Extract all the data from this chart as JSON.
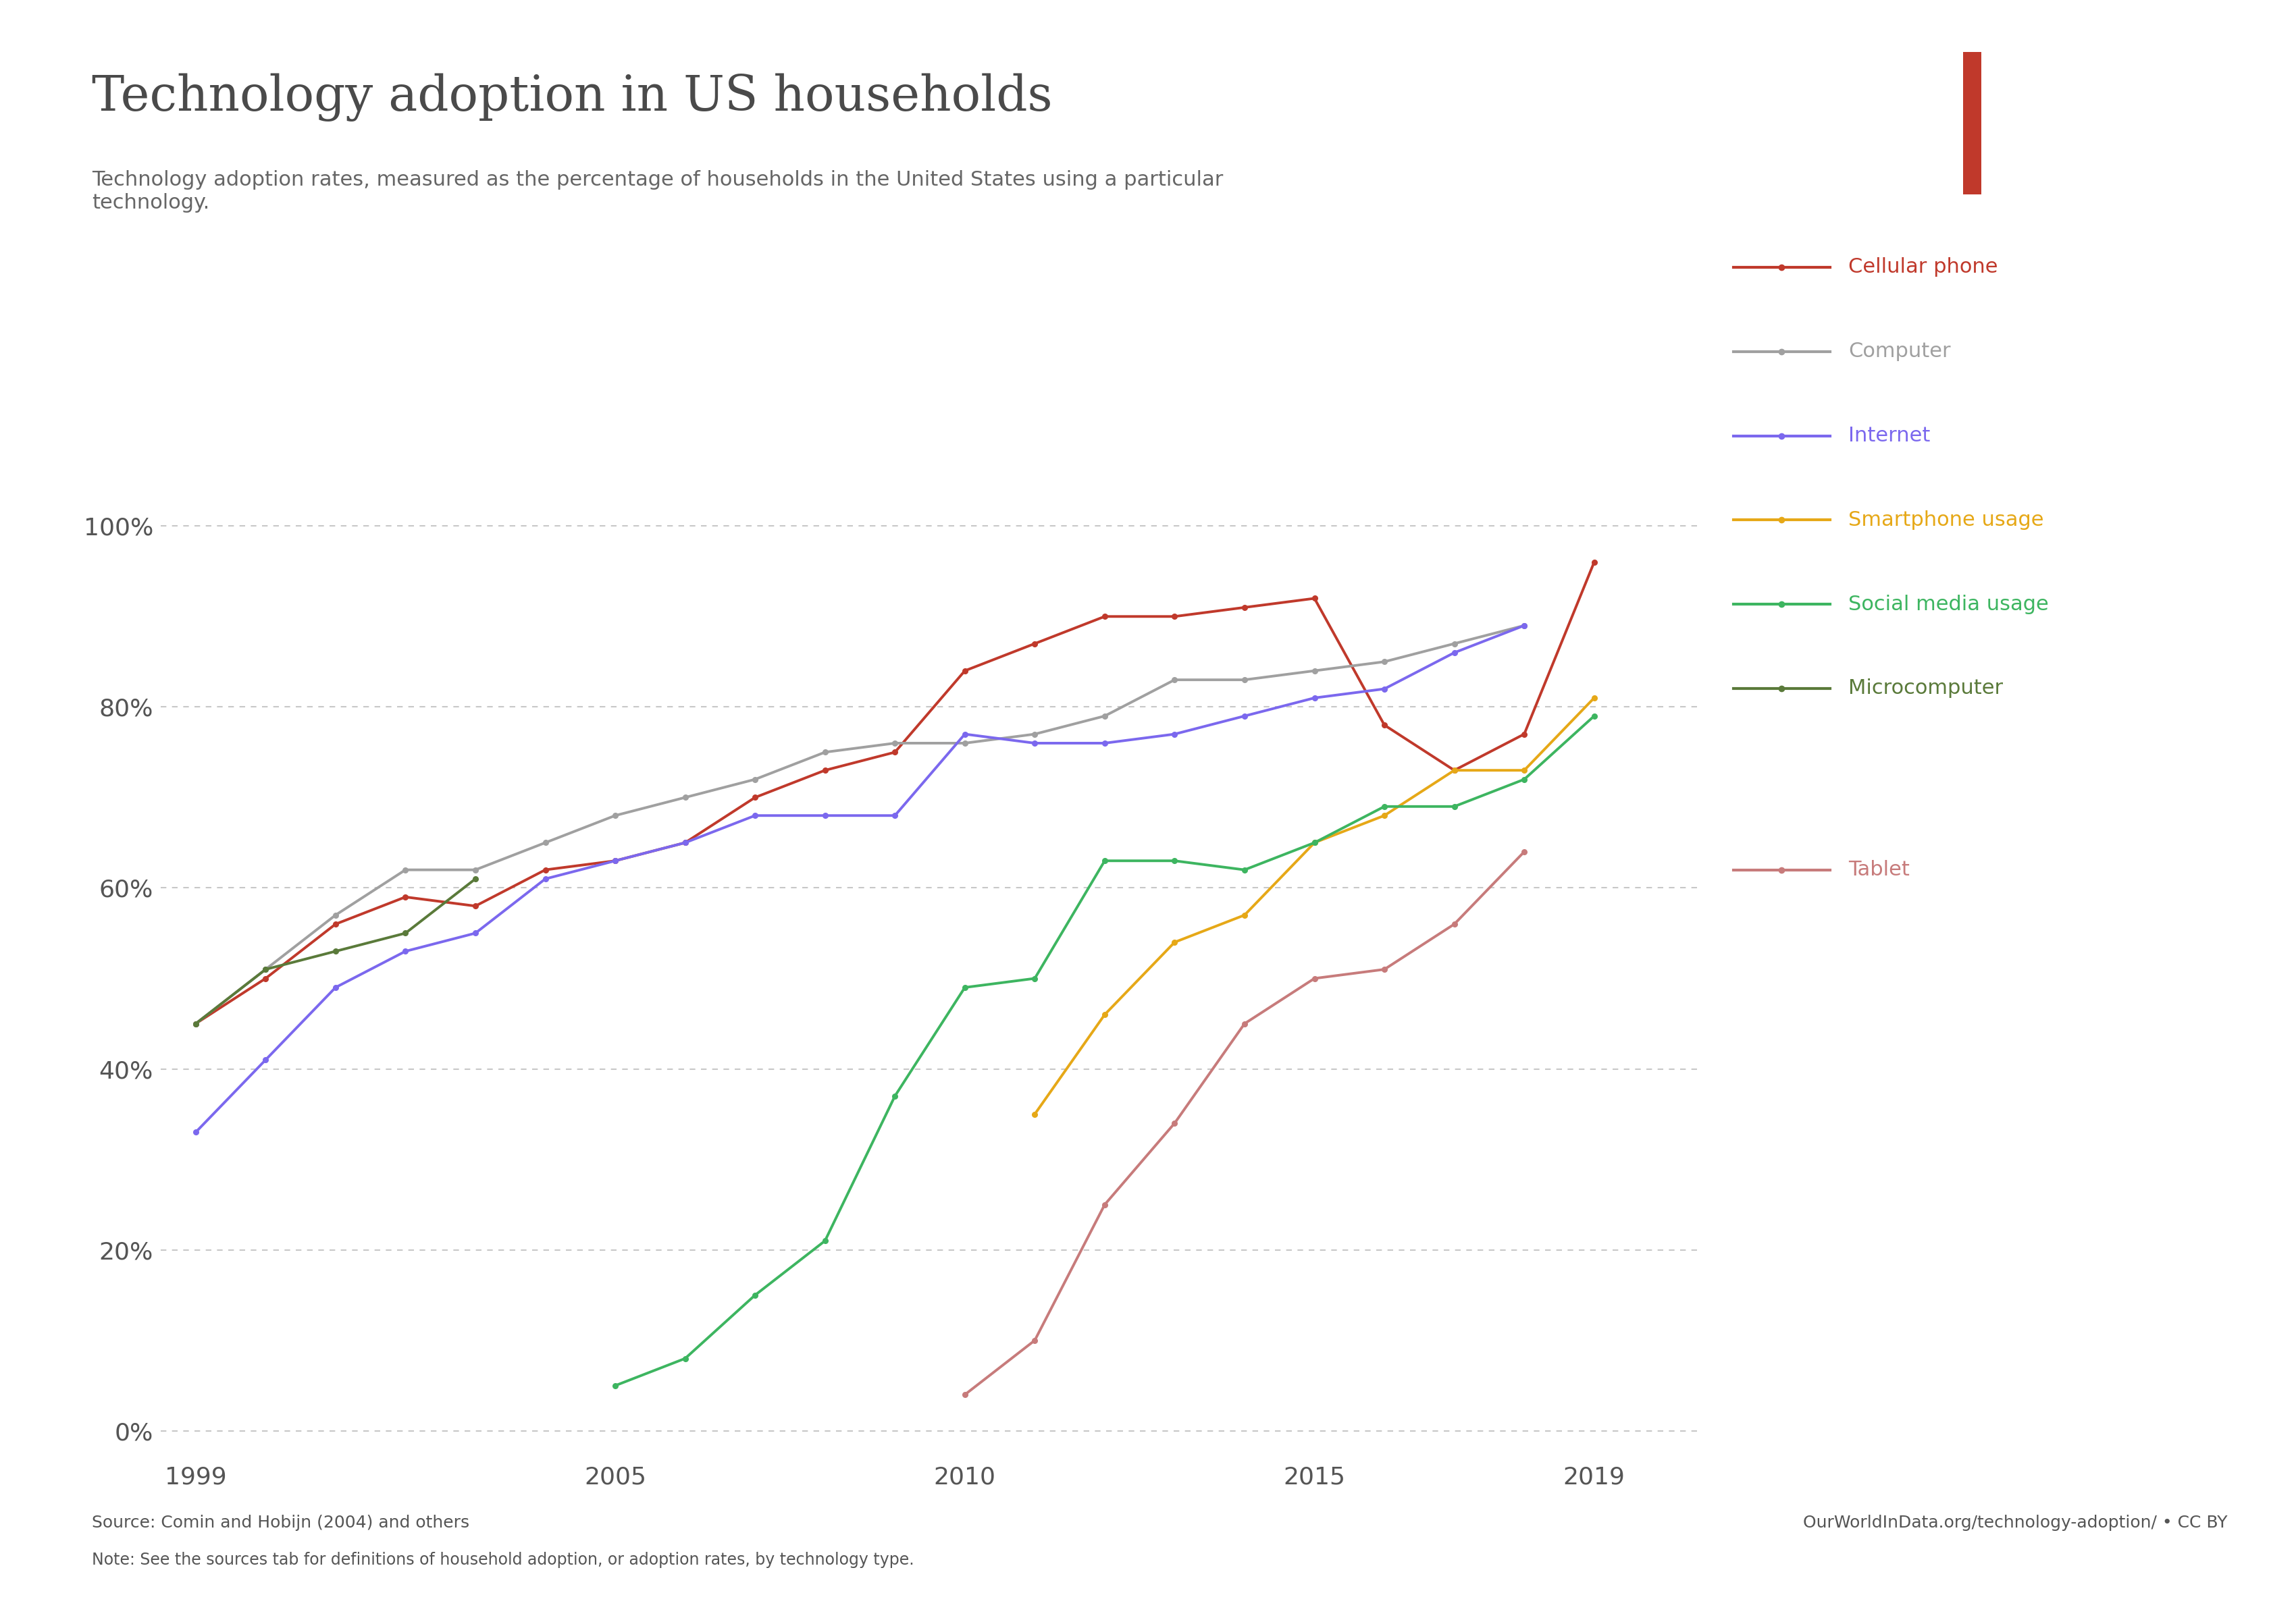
{
  "title": "Technology adoption in US households",
  "subtitle": "Technology adoption rates, measured as the percentage of households in the United States using a particular\ntechnology.",
  "source_left": "Source: Comin and Hobijn (2004) and others",
  "source_right": "OurWorldInData.org/technology-adoption/ • CC BY",
  "note": "Note: See the sources tab for definitions of household adoption, or adoption rates, by technology type.",
  "background_color": "#ffffff",
  "grid_color": "#c8c8c8",
  "title_color": "#4a4a4a",
  "series": [
    {
      "name": "Cellular phone",
      "color": "#c0392b",
      "linestyle": "solid",
      "data": [
        [
          1999,
          45
        ],
        [
          2000,
          50
        ],
        [
          2001,
          56
        ],
        [
          2002,
          59
        ],
        [
          2003,
          58
        ],
        [
          2004,
          62
        ],
        [
          2005,
          63
        ],
        [
          2006,
          65
        ],
        [
          2007,
          70
        ],
        [
          2008,
          73
        ],
        [
          2009,
          75
        ],
        [
          2010,
          84
        ],
        [
          2011,
          87
        ],
        [
          2012,
          90
        ],
        [
          2013,
          90
        ],
        [
          2014,
          91
        ],
        [
          2015,
          92
        ],
        [
          2016,
          78
        ],
        [
          2017,
          73
        ],
        [
          2018,
          77
        ],
        [
          2019,
          96
        ]
      ]
    },
    {
      "name": "Computer",
      "color": "#a0a0a0",
      "linestyle": "solid",
      "data": [
        [
          1999,
          45
        ],
        [
          2000,
          51
        ],
        [
          2001,
          57
        ],
        [
          2002,
          62
        ],
        [
          2003,
          62
        ],
        [
          2004,
          65
        ],
        [
          2005,
          68
        ],
        [
          2006,
          70
        ],
        [
          2007,
          72
        ],
        [
          2008,
          75
        ],
        [
          2009,
          76
        ],
        [
          2010,
          76
        ],
        [
          2011,
          77
        ],
        [
          2012,
          79
        ],
        [
          2013,
          83
        ],
        [
          2014,
          83
        ],
        [
          2015,
          84
        ],
        [
          2016,
          85
        ],
        [
          2017,
          87
        ],
        [
          2018,
          89
        ]
      ]
    },
    {
      "name": "Internet",
      "color": "#7b68ee",
      "linestyle": "solid",
      "data": [
        [
          1999,
          33
        ],
        [
          2000,
          41
        ],
        [
          2001,
          49
        ],
        [
          2002,
          53
        ],
        [
          2003,
          55
        ],
        [
          2004,
          61
        ],
        [
          2005,
          63
        ],
        [
          2006,
          65
        ],
        [
          2007,
          68
        ],
        [
          2008,
          68
        ],
        [
          2009,
          68
        ],
        [
          2010,
          77
        ],
        [
          2011,
          76
        ],
        [
          2012,
          76
        ],
        [
          2013,
          77
        ],
        [
          2014,
          79
        ],
        [
          2015,
          81
        ],
        [
          2016,
          82
        ],
        [
          2017,
          86
        ],
        [
          2018,
          89
        ]
      ]
    },
    {
      "name": "Smartphone usage",
      "color": "#e6a817",
      "linestyle": "solid",
      "data": [
        [
          2011,
          35
        ],
        [
          2012,
          46
        ],
        [
          2013,
          54
        ],
        [
          2014,
          57
        ],
        [
          2015,
          65
        ],
        [
          2016,
          68
        ],
        [
          2017,
          73
        ],
        [
          2018,
          73
        ],
        [
          2019,
          81
        ]
      ]
    },
    {
      "name": "Social media usage",
      "color": "#3db560",
      "linestyle": "solid",
      "data": [
        [
          2005,
          5
        ],
        [
          2006,
          8
        ],
        [
          2007,
          15
        ],
        [
          2008,
          21
        ],
        [
          2009,
          37
        ],
        [
          2010,
          49
        ],
        [
          2011,
          50
        ],
        [
          2012,
          63
        ],
        [
          2013,
          63
        ],
        [
          2014,
          62
        ],
        [
          2015,
          65
        ],
        [
          2016,
          69
        ],
        [
          2017,
          69
        ],
        [
          2018,
          72
        ],
        [
          2019,
          79
        ]
      ]
    },
    {
      "name": "Microcomputer",
      "color": "#5a7a3a",
      "linestyle": "solid",
      "data": [
        [
          1999,
          45
        ],
        [
          2000,
          51
        ],
        [
          2001,
          53
        ],
        [
          2002,
          55
        ],
        [
          2003,
          61
        ]
      ]
    },
    {
      "name": "Tablet",
      "color": "#c77b7b",
      "linestyle": "solid",
      "data": [
        [
          2010,
          4
        ],
        [
          2011,
          10
        ],
        [
          2012,
          25
        ],
        [
          2013,
          34
        ],
        [
          2014,
          45
        ],
        [
          2015,
          50
        ],
        [
          2016,
          51
        ],
        [
          2017,
          56
        ],
        [
          2018,
          64
        ]
      ]
    }
  ],
  "xlim": [
    1998.5,
    2020.5
  ],
  "ylim": [
    -3,
    108
  ],
  "yticks": [
    0,
    20,
    40,
    60,
    80,
    100
  ],
  "xticks": [
    1999,
    2005,
    2010,
    2015,
    2019
  ],
  "legend": [
    {
      "name": "Cellular phone",
      "color": "#c0392b",
      "linestyle": "solid"
    },
    {
      "name": "Computer",
      "color": "#a0a0a0",
      "linestyle": "solid"
    },
    {
      "name": "Internet",
      "color": "#7b68ee",
      "linestyle": "solid"
    },
    {
      "name": "Smartphone usage",
      "color": "#e6a817",
      "linestyle": "solid"
    },
    {
      "name": "Social media usage",
      "color": "#3db560",
      "linestyle": "solid"
    },
    {
      "name": "Microcomputer",
      "color": "#5a7a3a",
      "linestyle": "solid"
    },
    {
      "name": "Tablet",
      "color": "#c77b7b",
      "linestyle": "solid"
    }
  ]
}
